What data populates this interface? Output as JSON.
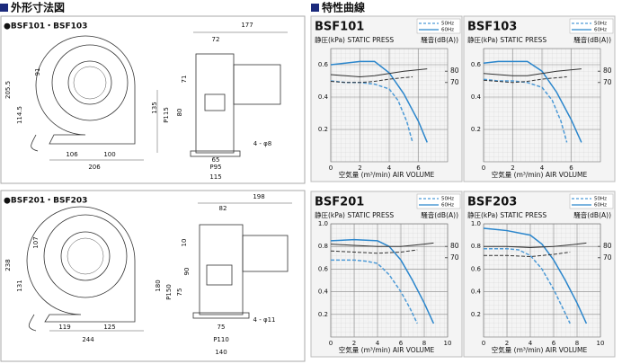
{
  "header": {
    "left": "外形寸法図",
    "right": "特性曲線"
  },
  "drawings": [
    {
      "caption": "●BSF101・BSF103",
      "dims": [
        "177",
        "72",
        "71",
        "91",
        "205.5",
        "114.5",
        "135",
        "P115",
        "80",
        "4 - φ8",
        "65",
        "P95",
        "115",
        "106",
        "100",
        "206"
      ]
    },
    {
      "caption": "●BSF201・BSF203",
      "dims": [
        "198",
        "82",
        "107",
        "238",
        "131",
        "10",
        "90",
        "180",
        "P150",
        "75",
        "4 - φ11",
        "75",
        "P110",
        "140",
        "119",
        "125",
        "244"
      ]
    }
  ],
  "chart_data": [
    {
      "type": "line",
      "title": "BSF101",
      "ylabel": "静圧(kPa) STATIC PRESS",
      "y2label": "騒音(dB(A))",
      "xlabel": "空気量 (m³/min) AIR VOLUME",
      "xlim": [
        0,
        8
      ],
      "xticks": [
        0,
        2,
        4,
        6
      ],
      "ylim": [
        0,
        0.7
      ],
      "yticks": [
        0.2,
        0.4,
        0.6
      ],
      "y2lim": [
        0,
        100
      ],
      "y2ticks": [
        70,
        80
      ],
      "grid": true,
      "legend": "upper right",
      "series": [
        {
          "name": "50Hz",
          "color": "#4d9ad6",
          "dash": true,
          "x": [
            0,
            1,
            2,
            3,
            4,
            4.6,
            5.2,
            5.6
          ],
          "values": [
            0.5,
            0.49,
            0.49,
            0.48,
            0.45,
            0.38,
            0.25,
            0.12
          ]
        },
        {
          "name": "60Hz",
          "color": "#2b86cc",
          "dash": false,
          "x": [
            0,
            1,
            2,
            3,
            4,
            5,
            6,
            6.6
          ],
          "values": [
            0.6,
            0.61,
            0.62,
            0.62,
            0.55,
            0.42,
            0.25,
            0.12
          ]
        },
        {
          "color": "#333333",
          "dash": true,
          "axis": "y2",
          "x": [
            0,
            1,
            2,
            3,
            4,
            5.6
          ],
          "values": [
            71,
            70,
            70,
            71,
            73,
            75
          ]
        },
        {
          "color": "#333333",
          "dash": false,
          "axis": "y2",
          "x": [
            0,
            1,
            2,
            3,
            4,
            5,
            6.6
          ],
          "values": [
            77,
            76,
            75,
            76,
            78,
            80,
            82
          ]
        }
      ]
    },
    {
      "type": "line",
      "title": "BSF103",
      "ylabel": "静圧(kPa) STATIC PRESS",
      "y2label": "騒音(dB(A))",
      "xlabel": "空気量 (m³/min) AIR VOLUME",
      "xlim": [
        0,
        8
      ],
      "xticks": [
        0,
        2,
        4,
        6
      ],
      "ylim": [
        0,
        0.7
      ],
      "yticks": [
        0.2,
        0.4,
        0.6
      ],
      "y2lim": [
        0,
        100
      ],
      "y2ticks": [
        70,
        80
      ],
      "grid": true,
      "legend": "upper right",
      "series": [
        {
          "name": "50Hz",
          "color": "#4d9ad6",
          "dash": true,
          "x": [
            0,
            1,
            2,
            3,
            4,
            4.7,
            5.3,
            5.7
          ],
          "values": [
            0.51,
            0.5,
            0.5,
            0.49,
            0.46,
            0.38,
            0.25,
            0.12
          ]
        },
        {
          "name": "60Hz",
          "color": "#2b86cc",
          "dash": false,
          "x": [
            0,
            1,
            2,
            3,
            4,
            5,
            6,
            6.7
          ],
          "values": [
            0.61,
            0.62,
            0.62,
            0.62,
            0.56,
            0.43,
            0.26,
            0.12
          ]
        },
        {
          "color": "#333333",
          "dash": true,
          "axis": "y2",
          "x": [
            0,
            1,
            2,
            3,
            4,
            5.7
          ],
          "values": [
            72,
            71,
            70,
            71,
            73,
            75
          ]
        },
        {
          "color": "#333333",
          "dash": false,
          "axis": "y2",
          "x": [
            0,
            1,
            2,
            3,
            4,
            5,
            6.7
          ],
          "values": [
            78,
            77,
            76,
            76,
            78,
            80,
            82
          ]
        }
      ]
    },
    {
      "type": "line",
      "title": "BSF201",
      "ylabel": "静圧(kPa) STATIC PRESS",
      "y2label": "騒音(dB(A))",
      "xlabel": "空気量 (m³/min) AIR VOLUME",
      "xlim": [
        0,
        10
      ],
      "xticks": [
        0,
        2,
        4,
        6,
        8,
        10
      ],
      "ylim": [
        0,
        1
      ],
      "yticks": [
        0.2,
        0.4,
        0.6,
        0.8,
        {
          "value": 1,
          "label": "1.0"
        }
      ],
      "y2lim": [
        0,
        100
      ],
      "y2ticks": [
        70,
        80
      ],
      "grid": true,
      "legend": "upper right",
      "series": [
        {
          "name": "50Hz",
          "color": "#4d9ad6",
          "dash": true,
          "x": [
            0,
            2,
            3,
            4,
            5,
            6,
            6.8,
            7.4
          ],
          "values": [
            0.68,
            0.68,
            0.67,
            0.65,
            0.55,
            0.4,
            0.25,
            0.12
          ]
        },
        {
          "name": "60Hz",
          "color": "#2b86cc",
          "dash": false,
          "x": [
            0,
            2,
            4,
            5,
            6,
            7,
            8,
            8.8
          ],
          "values": [
            0.85,
            0.86,
            0.85,
            0.8,
            0.68,
            0.5,
            0.3,
            0.12
          ]
        },
        {
          "color": "#333333",
          "dash": true,
          "axis": "y2",
          "x": [
            0,
            2,
            4,
            6,
            7.4
          ],
          "values": [
            76,
            75,
            74,
            75,
            77
          ]
        },
        {
          "color": "#333333",
          "dash": false,
          "axis": "y2",
          "x": [
            0,
            2,
            4,
            6,
            8,
            8.8
          ],
          "values": [
            82,
            81,
            80,
            80,
            82,
            83
          ]
        }
      ]
    },
    {
      "type": "line",
      "title": "BSF203",
      "ylabel": "静圧(kPa) STATIC PRESS",
      "y2label": "騒音(dB(A))",
      "xlabel": "空気量 (m³/min) AIR VOLUME",
      "xlim": [
        0,
        10
      ],
      "xticks": [
        0,
        2,
        4,
        6,
        8,
        10
      ],
      "ylim": [
        0,
        1
      ],
      "yticks": [
        0.2,
        0.4,
        0.6,
        0.8,
        {
          "value": 1,
          "label": "1.0"
        }
      ],
      "y2lim": [
        0,
        100
      ],
      "y2ticks": [
        70,
        80
      ],
      "grid": true,
      "legend": "upper right",
      "series": [
        {
          "name": "50Hz",
          "color": "#4d9ad6",
          "dash": true,
          "x": [
            0,
            1,
            2,
            3,
            4,
            5,
            6,
            6.8,
            7.4
          ],
          "values": [
            0.78,
            0.78,
            0.78,
            0.77,
            0.72,
            0.6,
            0.42,
            0.25,
            0.12
          ]
        },
        {
          "name": "60Hz",
          "color": "#2b86cc",
          "dash": false,
          "x": [
            0,
            1,
            2,
            3,
            4,
            5,
            6,
            7,
            8,
            8.8
          ],
          "values": [
            0.96,
            0.95,
            0.94,
            0.92,
            0.9,
            0.82,
            0.68,
            0.5,
            0.3,
            0.12
          ]
        },
        {
          "color": "#333333",
          "dash": true,
          "axis": "y2",
          "x": [
            0,
            2,
            4,
            6,
            7.4
          ],
          "values": [
            72,
            72,
            71,
            73,
            75
          ]
        },
        {
          "color": "#333333",
          "dash": false,
          "axis": "y2",
          "x": [
            0,
            2,
            4,
            6,
            8,
            8.8
          ],
          "values": [
            80,
            80,
            79,
            80,
            82,
            83
          ]
        }
      ]
    }
  ]
}
